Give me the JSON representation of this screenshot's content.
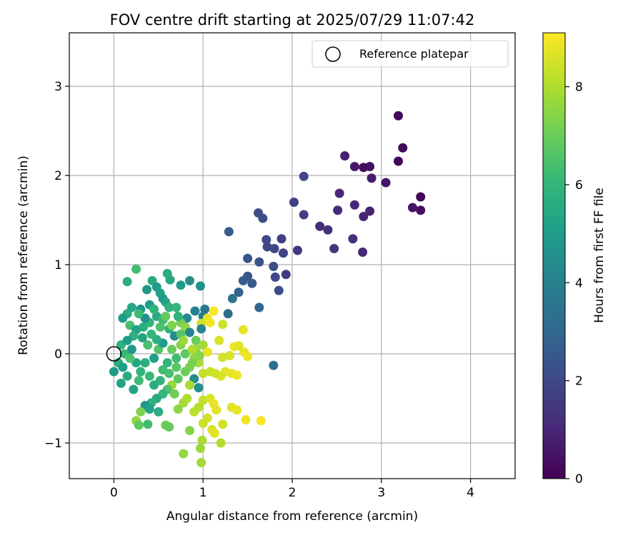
{
  "chart_data": {
    "type": "scatter",
    "title": "FOV centre drift starting at 2025/07/29 11:07:42",
    "xlabel": "Angular distance from reference (arcmin)",
    "ylabel": "Rotation from reference (arcmin)",
    "xlim": [
      -0.5,
      4.5
    ],
    "ylim": [
      -1.4,
      3.6
    ],
    "xticks": [
      0,
      1,
      2,
      3,
      4
    ],
    "xtick_labels": [
      "0",
      "1",
      "2",
      "3",
      "4"
    ],
    "yticks": [
      -1,
      0,
      1,
      2,
      3
    ],
    "ytick_labels": [
      "−1",
      "0",
      "1",
      "2",
      "3"
    ],
    "grid": true,
    "legend": {
      "label": "Reference platepar",
      "placement": "upper right",
      "marker": "open circle"
    },
    "reference_point": {
      "x": 0,
      "y": 0
    },
    "colorbar": {
      "label": "Hours from first FF file",
      "colormap": "viridis",
      "min": 0,
      "max": 9.1,
      "ticks": [
        0,
        2,
        4,
        6,
        8
      ],
      "tick_labels": [
        "0",
        "2",
        "4",
        "6",
        "8"
      ]
    },
    "colormap_stops": [
      "#440154",
      "#482878",
      "#3e4989",
      "#31688e",
      "#26828e",
      "#1f9e89",
      "#35b779",
      "#6ece58",
      "#b5de2b",
      "#fde725"
    ],
    "points": [
      {
        "x": 3.19,
        "y": 2.67,
        "c": 0.15
      },
      {
        "x": 3.24,
        "y": 2.31,
        "c": 0.2
      },
      {
        "x": 3.19,
        "y": 2.16,
        "c": 0.1
      },
      {
        "x": 3.44,
        "y": 1.76,
        "c": 0.1
      },
      {
        "x": 3.44,
        "y": 1.61,
        "c": 0.3
      },
      {
        "x": 3.35,
        "y": 1.64,
        "c": 0.5
      },
      {
        "x": 3.05,
        "y": 1.92,
        "c": 0.5
      },
      {
        "x": 2.89,
        "y": 1.97,
        "c": 0.7
      },
      {
        "x": 2.87,
        "y": 2.1,
        "c": 0.4
      },
      {
        "x": 2.8,
        "y": 2.09,
        "c": 0.35
      },
      {
        "x": 2.7,
        "y": 2.1,
        "c": 0.6
      },
      {
        "x": 2.59,
        "y": 2.22,
        "c": 0.8
      },
      {
        "x": 2.87,
        "y": 1.6,
        "c": 0.9
      },
      {
        "x": 2.8,
        "y": 1.54,
        "c": 0.9
      },
      {
        "x": 2.7,
        "y": 1.67,
        "c": 1.0
      },
      {
        "x": 2.53,
        "y": 1.8,
        "c": 1.0
      },
      {
        "x": 2.51,
        "y": 1.61,
        "c": 1.1
      },
      {
        "x": 2.68,
        "y": 1.29,
        "c": 1.2
      },
      {
        "x": 2.79,
        "y": 1.14,
        "c": 1.0
      },
      {
        "x": 2.47,
        "y": 1.18,
        "c": 1.4
      },
      {
        "x": 2.4,
        "y": 1.39,
        "c": 1.3
      },
      {
        "x": 2.31,
        "y": 1.43,
        "c": 1.2
      },
      {
        "x": 2.13,
        "y": 1.99,
        "c": 1.9
      },
      {
        "x": 2.13,
        "y": 1.56,
        "c": 1.7
      },
      {
        "x": 2.02,
        "y": 1.7,
        "c": 1.8
      },
      {
        "x": 2.06,
        "y": 1.16,
        "c": 1.5
      },
      {
        "x": 1.93,
        "y": 0.89,
        "c": 1.6
      },
      {
        "x": 1.88,
        "y": 1.29,
        "c": 1.7
      },
      {
        "x": 1.9,
        "y": 1.13,
        "c": 1.8
      },
      {
        "x": 1.8,
        "y": 1.18,
        "c": 1.9
      },
      {
        "x": 1.72,
        "y": 1.2,
        "c": 1.9
      },
      {
        "x": 1.71,
        "y": 1.28,
        "c": 2.0
      },
      {
        "x": 1.62,
        "y": 1.58,
        "c": 2.1
      },
      {
        "x": 1.67,
        "y": 1.52,
        "c": 2.2
      },
      {
        "x": 1.81,
        "y": 0.86,
        "c": 2.0
      },
      {
        "x": 1.79,
        "y": 0.98,
        "c": 2.1
      },
      {
        "x": 1.85,
        "y": 0.71,
        "c": 2.2
      },
      {
        "x": 1.63,
        "y": 1.03,
        "c": 2.3
      },
      {
        "x": 1.5,
        "y": 1.07,
        "c": 2.4
      },
      {
        "x": 1.55,
        "y": 0.79,
        "c": 2.5
      },
      {
        "x": 1.5,
        "y": 0.87,
        "c": 2.4
      },
      {
        "x": 1.45,
        "y": 0.82,
        "c": 2.6
      },
      {
        "x": 1.4,
        "y": 0.69,
        "c": 2.8
      },
      {
        "x": 1.29,
        "y": 1.37,
        "c": 2.7
      },
      {
        "x": 1.33,
        "y": 0.62,
        "c": 3.4
      },
      {
        "x": 1.63,
        "y": 0.52,
        "c": 3.0
      },
      {
        "x": 1.28,
        "y": 0.45,
        "c": 3.2
      },
      {
        "x": 1.79,
        "y": -0.13,
        "c": 3.3
      },
      {
        "x": 1.02,
        "y": 0.5,
        "c": 3.6
      },
      {
        "x": 0.97,
        "y": 0.76,
        "c": 4.6
      },
      {
        "x": 0.91,
        "y": 0.48,
        "c": 4.0
      },
      {
        "x": 0.85,
        "y": 0.82,
        "c": 4.5
      },
      {
        "x": 0.75,
        "y": 0.77,
        "c": 5.0
      },
      {
        "x": 0.63,
        "y": 0.83,
        "c": 5.4
      },
      {
        "x": 0.6,
        "y": 0.9,
        "c": 5.6
      },
      {
        "x": 0.43,
        "y": 0.82,
        "c": 5.5
      },
      {
        "x": 0.48,
        "y": 0.75,
        "c": 5.0
      },
      {
        "x": 0.37,
        "y": 0.72,
        "c": 4.8
      },
      {
        "x": 0.25,
        "y": 0.95,
        "c": 6.3
      },
      {
        "x": 0.15,
        "y": 0.81,
        "c": 5.7
      },
      {
        "x": 0.52,
        "y": 0.68,
        "c": 5.2
      },
      {
        "x": 0.55,
        "y": 0.62,
        "c": 4.9
      },
      {
        "x": 0.58,
        "y": 0.58,
        "c": 5.3
      },
      {
        "x": 0.62,
        "y": 0.52,
        "c": 5.8
      },
      {
        "x": 0.7,
        "y": 0.52,
        "c": 6.0
      },
      {
        "x": 0.82,
        "y": 0.4,
        "c": 4.3
      },
      {
        "x": 1.0,
        "y": 0.42,
        "c": 3.8
      },
      {
        "x": 1.05,
        "y": 0.4,
        "c": 8.8
      },
      {
        "x": 1.12,
        "y": 0.48,
        "c": 9.0
      },
      {
        "x": 1.08,
        "y": 0.35,
        "c": 8.9
      },
      {
        "x": 0.98,
        "y": 0.34,
        "c": 8.5
      },
      {
        "x": 0.98,
        "y": 0.28,
        "c": 4.2
      },
      {
        "x": 0.75,
        "y": 0.35,
        "c": 7.2
      },
      {
        "x": 0.8,
        "y": 0.3,
        "c": 7.5
      },
      {
        "x": 0.72,
        "y": 0.42,
        "c": 5.9
      },
      {
        "x": 0.4,
        "y": 0.55,
        "c": 5.1
      },
      {
        "x": 0.3,
        "y": 0.5,
        "c": 4.7
      },
      {
        "x": 0.2,
        "y": 0.52,
        "c": 5.4
      },
      {
        "x": 0.15,
        "y": 0.45,
        "c": 5.6
      },
      {
        "x": 0.1,
        "y": 0.4,
        "c": 5.0
      },
      {
        "x": 0.18,
        "y": 0.32,
        "c": 6.4
      },
      {
        "x": 0.25,
        "y": 0.27,
        "c": 5.2
      },
      {
        "x": 0.33,
        "y": 0.3,
        "c": 5.7
      },
      {
        "x": 0.4,
        "y": 0.35,
        "c": 6.0
      },
      {
        "x": 0.48,
        "y": 0.42,
        "c": 5.5
      },
      {
        "x": 0.55,
        "y": 0.38,
        "c": 6.2
      },
      {
        "x": 0.62,
        "y": 0.28,
        "c": 5.8
      },
      {
        "x": 0.68,
        "y": 0.2,
        "c": 4.4
      },
      {
        "x": 0.75,
        "y": 0.22,
        "c": 6.6
      },
      {
        "x": 0.85,
        "y": 0.24,
        "c": 4.1
      },
      {
        "x": 0.92,
        "y": 0.15,
        "c": 7.0
      },
      {
        "x": 1.0,
        "y": 0.1,
        "c": 7.8
      },
      {
        "x": 1.18,
        "y": 0.15,
        "c": 8.6
      },
      {
        "x": 1.22,
        "y": 0.33,
        "c": 8.4
      },
      {
        "x": 1.45,
        "y": 0.27,
        "c": 8.8
      },
      {
        "x": 1.35,
        "y": 0.08,
        "c": 8.9
      },
      {
        "x": 1.4,
        "y": 0.09,
        "c": 8.7
      },
      {
        "x": 1.46,
        "y": 0.02,
        "c": 8.8
      },
      {
        "x": 1.5,
        "y": -0.03,
        "c": 8.9
      },
      {
        "x": 1.3,
        "y": -0.02,
        "c": 8.6
      },
      {
        "x": 1.22,
        "y": -0.04,
        "c": 8.5
      },
      {
        "x": 1.25,
        "y": -0.2,
        "c": 8.7
      },
      {
        "x": 1.32,
        "y": -0.22,
        "c": 8.8
      },
      {
        "x": 1.38,
        "y": -0.24,
        "c": 8.9
      },
      {
        "x": 1.2,
        "y": -0.25,
        "c": 8.6
      },
      {
        "x": 1.14,
        "y": -0.22,
        "c": 8.5
      },
      {
        "x": 1.08,
        "y": -0.2,
        "c": 8.4
      },
      {
        "x": 1.0,
        "y": -0.22,
        "c": 8.3
      },
      {
        "x": 1.05,
        "y": 0.02,
        "c": 8.8
      },
      {
        "x": 0.95,
        "y": -0.1,
        "c": 7.9
      },
      {
        "x": 0.9,
        "y": -0.05,
        "c": 7.6
      },
      {
        "x": 0.85,
        "y": -0.15,
        "c": 7.3
      },
      {
        "x": 0.8,
        "y": -0.2,
        "c": 7.0
      },
      {
        "x": 0.72,
        "y": -0.28,
        "c": 6.8
      },
      {
        "x": 0.65,
        "y": -0.35,
        "c": 7.7
      },
      {
        "x": 0.6,
        "y": -0.4,
        "c": 6.5
      },
      {
        "x": 0.55,
        "y": -0.45,
        "c": 6.0
      },
      {
        "x": 0.48,
        "y": -0.5,
        "c": 5.5
      },
      {
        "x": 0.42,
        "y": -0.55,
        "c": 5.8
      },
      {
        "x": 0.35,
        "y": -0.58,
        "c": 4.7
      },
      {
        "x": 0.4,
        "y": -0.62,
        "c": 5.2
      },
      {
        "x": 0.5,
        "y": -0.65,
        "c": 5.6
      },
      {
        "x": 0.3,
        "y": -0.65,
        "c": 7.3
      },
      {
        "x": 0.25,
        "y": -0.75,
        "c": 7.6
      },
      {
        "x": 0.28,
        "y": -0.8,
        "c": 6.8
      },
      {
        "x": 0.38,
        "y": -0.79,
        "c": 6.3
      },
      {
        "x": 0.58,
        "y": -0.8,
        "c": 7.1
      },
      {
        "x": 0.62,
        "y": -0.82,
        "c": 6.9
      },
      {
        "x": 0.72,
        "y": -0.62,
        "c": 7.5
      },
      {
        "x": 0.78,
        "y": -0.55,
        "c": 7.8
      },
      {
        "x": 0.82,
        "y": -0.5,
        "c": 8.0
      },
      {
        "x": 0.9,
        "y": -0.65,
        "c": 8.2
      },
      {
        "x": 0.95,
        "y": -0.6,
        "c": 8.1
      },
      {
        "x": 1.0,
        "y": -0.52,
        "c": 8.3
      },
      {
        "x": 1.08,
        "y": -0.5,
        "c": 8.6
      },
      {
        "x": 1.12,
        "y": -0.56,
        "c": 8.8
      },
      {
        "x": 1.15,
        "y": -0.63,
        "c": 8.7
      },
      {
        "x": 1.05,
        "y": -0.72,
        "c": 8.5
      },
      {
        "x": 1.0,
        "y": -0.78,
        "c": 8.4
      },
      {
        "x": 1.1,
        "y": -0.85,
        "c": 8.6
      },
      {
        "x": 1.13,
        "y": -0.89,
        "c": 8.7
      },
      {
        "x": 1.22,
        "y": -0.79,
        "c": 8.5
      },
      {
        "x": 1.32,
        "y": -0.6,
        "c": 8.7
      },
      {
        "x": 1.38,
        "y": -0.63,
        "c": 8.8
      },
      {
        "x": 1.48,
        "y": -0.74,
        "c": 8.9
      },
      {
        "x": 1.65,
        "y": -0.75,
        "c": 9.0
      },
      {
        "x": 1.2,
        "y": -1.0,
        "c": 8.0
      },
      {
        "x": 0.99,
        "y": -0.97,
        "c": 7.9
      },
      {
        "x": 0.97,
        "y": -1.06,
        "c": 7.7
      },
      {
        "x": 0.78,
        "y": -1.12,
        "c": 7.6
      },
      {
        "x": 0.98,
        "y": -1.22,
        "c": 7.8
      },
      {
        "x": 0.85,
        "y": -0.86,
        "c": 7.4
      },
      {
        "x": 0.0,
        "y": -0.2,
        "c": 5.0
      },
      {
        "x": 0.05,
        "y": -0.1,
        "c": 5.6
      },
      {
        "x": 0.08,
        "y": 0.1,
        "c": 5.8
      },
      {
        "x": 0.08,
        "y": -0.33,
        "c": 5.2
      },
      {
        "x": 0.15,
        "y": -0.25,
        "c": 5.5
      },
      {
        "x": 0.12,
        "y": 0.0,
        "c": 6.1
      },
      {
        "x": 0.2,
        "y": 0.05,
        "c": 4.8
      },
      {
        "x": 0.25,
        "y": -0.1,
        "c": 5.4
      },
      {
        "x": 0.3,
        "y": -0.2,
        "c": 5.9
      },
      {
        "x": 0.22,
        "y": -0.4,
        "c": 5.3
      },
      {
        "x": 0.28,
        "y": -0.3,
        "c": 6.2
      },
      {
        "x": 0.35,
        "y": -0.1,
        "c": 5.7
      },
      {
        "x": 0.38,
        "y": 0.1,
        "c": 6.4
      },
      {
        "x": 0.45,
        "y": -0.05,
        "c": 5.1
      },
      {
        "x": 0.5,
        "y": 0.05,
        "c": 6.6
      },
      {
        "x": 0.55,
        "y": 0.12,
        "c": 4.9
      },
      {
        "x": 0.6,
        "y": -0.1,
        "c": 6.0
      },
      {
        "x": 0.65,
        "y": 0.05,
        "c": 7.0
      },
      {
        "x": 0.7,
        "y": -0.05,
        "c": 6.3
      },
      {
        "x": 0.75,
        "y": 0.1,
        "c": 7.4
      },
      {
        "x": 0.8,
        "y": 0.0,
        "c": 6.8
      },
      {
        "x": 0.88,
        "y": -0.1,
        "c": 7.2
      },
      {
        "x": 0.92,
        "y": 0.05,
        "c": 7.6
      },
      {
        "x": 0.9,
        "y": -0.28,
        "c": 4.4
      },
      {
        "x": 0.95,
        "y": -0.38,
        "c": 4.6
      },
      {
        "x": 0.85,
        "y": -0.35,
        "c": 7.9
      },
      {
        "x": 0.68,
        "y": -0.45,
        "c": 7.1
      },
      {
        "x": 0.62,
        "y": -0.22,
        "c": 6.4
      },
      {
        "x": 0.52,
        "y": -0.3,
        "c": 5.9
      },
      {
        "x": 0.45,
        "y": -0.35,
        "c": 5.6
      },
      {
        "x": 0.4,
        "y": -0.25,
        "c": 6.1
      },
      {
        "x": 0.32,
        "y": 0.18,
        "c": 5.3
      },
      {
        "x": 0.42,
        "y": 0.22,
        "c": 6.0
      },
      {
        "x": 0.48,
        "y": 0.16,
        "c": 5.7
      },
      {
        "x": 0.18,
        "y": -0.05,
        "c": 6.5
      },
      {
        "x": 0.1,
        "y": -0.15,
        "c": 5.1
      },
      {
        "x": 0.58,
        "y": 0.42,
        "c": 6.9
      },
      {
        "x": 0.65,
        "y": 0.32,
        "c": 7.3
      },
      {
        "x": 0.78,
        "y": 0.15,
        "c": 7.7
      },
      {
        "x": 0.88,
        "y": 0.05,
        "c": 8.0
      },
      {
        "x": 0.96,
        "y": -0.02,
        "c": 7.4
      },
      {
        "x": 0.7,
        "y": -0.15,
        "c": 6.7
      },
      {
        "x": 0.55,
        "y": -0.18,
        "c": 6.3
      },
      {
        "x": 0.35,
        "y": 0.4,
        "c": 4.6
      },
      {
        "x": 0.28,
        "y": 0.45,
        "c": 6.2
      },
      {
        "x": 0.22,
        "y": 0.2,
        "c": 5.8
      },
      {
        "x": 0.15,
        "y": 0.15,
        "c": 5.0
      },
      {
        "x": 0.45,
        "y": 0.5,
        "c": 5.9
      },
      {
        "x": 0.52,
        "y": 0.3,
        "c": 6.5
      }
    ]
  }
}
